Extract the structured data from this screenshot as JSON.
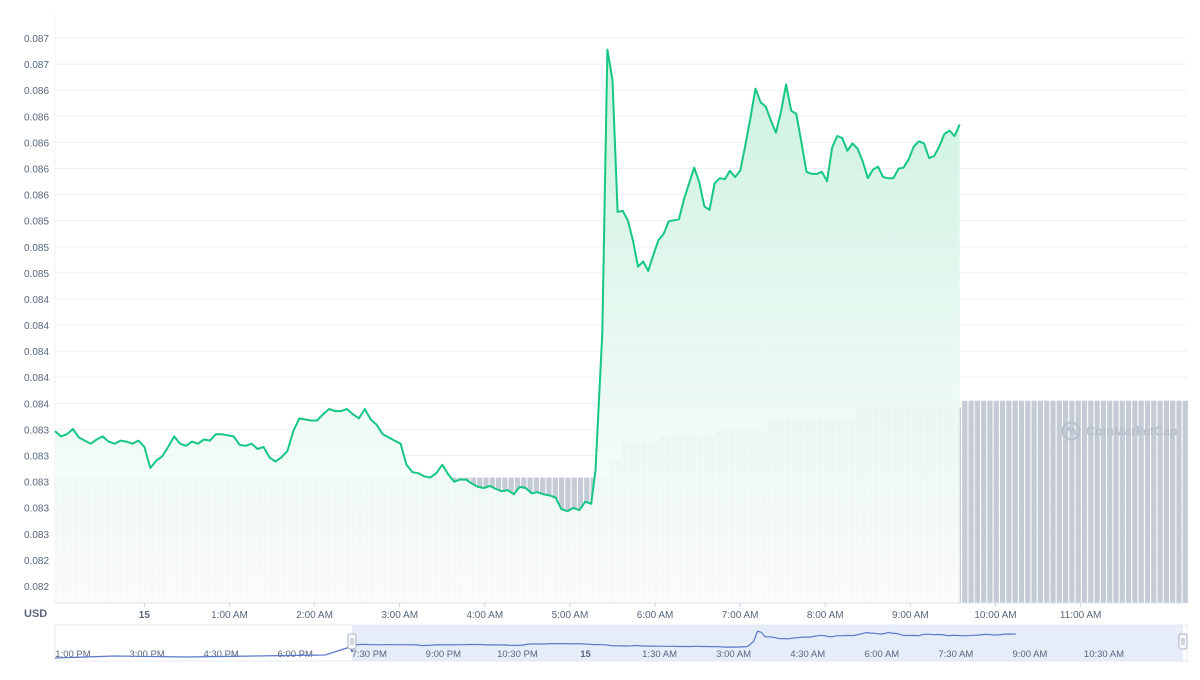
{
  "chart_data": {
    "type": "area",
    "currency_label": "USD",
    "watermark": "CoinMarketCap",
    "colors": {
      "line": "#16c784",
      "fill_top": "#c9f1de",
      "fill_bottom": "#ffffff",
      "volume": "#c5cbd6",
      "grid": "#eef0f3",
      "text": "#58667e",
      "nav_line": "#5b78c9",
      "nav_window": "#e3e9f8",
      "watermark": "#b8bfcb"
    },
    "y_ticks": [
      "0.087",
      "0.087",
      "0.086",
      "0.086",
      "0.086",
      "0.086",
      "0.086",
      "0.085",
      "0.085",
      "0.085",
      "0.084",
      "0.084",
      "0.084",
      "0.084",
      "0.084",
      "0.083",
      "0.083",
      "0.083",
      "0.083",
      "0.083",
      "0.082",
      "0.082"
    ],
    "y_range": [
      0.0819,
      0.0871
    ],
    "x_ticks": [
      "15",
      "1:00 AM",
      "2:00 AM",
      "3:00 AM",
      "4:00 AM",
      "5:00 AM",
      "6:00 AM",
      "7:00 AM",
      "8:00 AM",
      "9:00 AM",
      "10:00 AM",
      "11:00 AM"
    ],
    "x_range_hours": [
      -1.05,
      12.25
    ],
    "price_series": [
      [
        -1.05,
        0.08337
      ],
      [
        -0.98,
        0.08332
      ],
      [
        -0.91,
        0.08334
      ],
      [
        -0.84,
        0.08339
      ],
      [
        -0.77,
        0.08331
      ],
      [
        -0.7,
        0.08328
      ],
      [
        -0.63,
        0.08325
      ],
      [
        -0.56,
        0.08329
      ],
      [
        -0.49,
        0.08332
      ],
      [
        -0.42,
        0.08327
      ],
      [
        -0.35,
        0.08325
      ],
      [
        -0.28,
        0.08328
      ],
      [
        -0.21,
        0.08327
      ],
      [
        -0.14,
        0.08325
      ],
      [
        -0.07,
        0.08328
      ],
      [
        0.0,
        0.08322
      ],
      [
        0.07,
        0.08302
      ],
      [
        0.14,
        0.08309
      ],
      [
        0.21,
        0.08313
      ],
      [
        0.28,
        0.08322
      ],
      [
        0.35,
        0.08332
      ],
      [
        0.42,
        0.08325
      ],
      [
        0.49,
        0.08323
      ],
      [
        0.56,
        0.08327
      ],
      [
        0.63,
        0.08325
      ],
      [
        0.7,
        0.08329
      ],
      [
        0.77,
        0.08328
      ],
      [
        0.84,
        0.08334
      ],
      [
        0.91,
        0.08334
      ],
      [
        0.98,
        0.08333
      ],
      [
        1.05,
        0.08332
      ],
      [
        1.12,
        0.08324
      ],
      [
        1.19,
        0.08323
      ],
      [
        1.26,
        0.08325
      ],
      [
        1.33,
        0.0832
      ],
      [
        1.4,
        0.08322
      ],
      [
        1.47,
        0.08312
      ],
      [
        1.54,
        0.08308
      ],
      [
        1.61,
        0.08312
      ],
      [
        1.68,
        0.08318
      ],
      [
        1.75,
        0.08337
      ],
      [
        1.82,
        0.08349
      ],
      [
        1.89,
        0.08348
      ],
      [
        1.96,
        0.08347
      ],
      [
        2.03,
        0.08347
      ],
      [
        2.1,
        0.08353
      ],
      [
        2.17,
        0.08358
      ],
      [
        2.24,
        0.08356
      ],
      [
        2.31,
        0.08356
      ],
      [
        2.38,
        0.08358
      ],
      [
        2.45,
        0.08353
      ],
      [
        2.52,
        0.08349
      ],
      [
        2.59,
        0.08358
      ],
      [
        2.66,
        0.08348
      ],
      [
        2.73,
        0.08343
      ],
      [
        2.8,
        0.08334
      ],
      [
        2.87,
        0.08331
      ],
      [
        2.94,
        0.08328
      ],
      [
        3.01,
        0.08325
      ],
      [
        3.08,
        0.08305
      ],
      [
        3.15,
        0.08298
      ],
      [
        3.22,
        0.08297
      ],
      [
        3.29,
        0.08294
      ],
      [
        3.36,
        0.08293
      ],
      [
        3.43,
        0.08297
      ],
      [
        3.5,
        0.08305
      ],
      [
        3.57,
        0.08296
      ],
      [
        3.64,
        0.08289
      ],
      [
        3.71,
        0.08291
      ],
      [
        3.78,
        0.08291
      ],
      [
        3.85,
        0.08287
      ],
      [
        3.92,
        0.08284
      ],
      [
        3.99,
        0.08283
      ],
      [
        4.06,
        0.08285
      ],
      [
        4.13,
        0.08282
      ],
      [
        4.2,
        0.0828
      ],
      [
        4.27,
        0.08281
      ],
      [
        4.34,
        0.08277
      ],
      [
        4.41,
        0.08284
      ],
      [
        4.48,
        0.08283
      ],
      [
        4.55,
        0.08278
      ],
      [
        4.62,
        0.08279
      ],
      [
        4.69,
        0.08277
      ],
      [
        4.76,
        0.08276
      ],
      [
        4.83,
        0.08274
      ],
      [
        4.9,
        0.08263
      ],
      [
        4.97,
        0.08261
      ],
      [
        5.04,
        0.08264
      ],
      [
        5.11,
        0.08262
      ],
      [
        5.18,
        0.0827
      ],
      [
        5.25,
        0.08268
      ],
      [
        5.3,
        0.083
      ],
      [
        5.38,
        0.0843
      ],
      [
        5.44,
        0.08699
      ],
      [
        5.5,
        0.0867
      ],
      [
        5.56,
        0.08545
      ],
      [
        5.62,
        0.08546
      ],
      [
        5.68,
        0.08537
      ],
      [
        5.74,
        0.08518
      ],
      [
        5.8,
        0.08493
      ],
      [
        5.86,
        0.08498
      ],
      [
        5.92,
        0.08489
      ],
      [
        5.98,
        0.08504
      ],
      [
        6.04,
        0.08518
      ],
      [
        6.1,
        0.08524
      ],
      [
        6.16,
        0.08536
      ],
      [
        6.22,
        0.08537
      ],
      [
        6.28,
        0.08538
      ],
      [
        6.34,
        0.08557
      ],
      [
        6.4,
        0.08572
      ],
      [
        6.46,
        0.08587
      ],
      [
        6.52,
        0.08573
      ],
      [
        6.58,
        0.0855
      ],
      [
        6.64,
        0.08547
      ],
      [
        6.7,
        0.08572
      ],
      [
        6.76,
        0.08577
      ],
      [
        6.82,
        0.08576
      ],
      [
        6.88,
        0.08584
      ],
      [
        6.94,
        0.08578
      ],
      [
        7.0,
        0.08584
      ],
      [
        7.06,
        0.08608
      ],
      [
        7.12,
        0.08634
      ],
      [
        7.18,
        0.08662
      ],
      [
        7.24,
        0.08649
      ],
      [
        7.3,
        0.08645
      ],
      [
        7.36,
        0.08632
      ],
      [
        7.42,
        0.0862
      ],
      [
        7.48,
        0.0864
      ],
      [
        7.54,
        0.08666
      ],
      [
        7.6,
        0.08641
      ],
      [
        7.66,
        0.08638
      ],
      [
        7.72,
        0.08611
      ],
      [
        7.78,
        0.08583
      ],
      [
        7.84,
        0.08581
      ],
      [
        7.9,
        0.08581
      ],
      [
        7.96,
        0.08583
      ],
      [
        8.02,
        0.08574
      ],
      [
        8.08,
        0.08606
      ],
      [
        8.14,
        0.08617
      ],
      [
        8.2,
        0.08615
      ],
      [
        8.26,
        0.08603
      ],
      [
        8.32,
        0.0861
      ],
      [
        8.38,
        0.08605
      ],
      [
        8.44,
        0.08593
      ],
      [
        8.5,
        0.08577
      ],
      [
        8.56,
        0.08585
      ],
      [
        8.62,
        0.08588
      ],
      [
        8.68,
        0.08578
      ],
      [
        8.74,
        0.08577
      ],
      [
        8.8,
        0.08577
      ],
      [
        8.86,
        0.08586
      ],
      [
        8.92,
        0.08587
      ],
      [
        8.98,
        0.08595
      ],
      [
        9.04,
        0.08607
      ],
      [
        9.1,
        0.08612
      ],
      [
        9.16,
        0.0861
      ],
      [
        9.22,
        0.08596
      ],
      [
        9.28,
        0.08598
      ],
      [
        9.34,
        0.08607
      ],
      [
        9.4,
        0.08619
      ],
      [
        9.46,
        0.08622
      ],
      [
        9.52,
        0.08617
      ],
      [
        9.58,
        0.08628
      ]
    ],
    "volume_levels": [
      [
        -1.05,
        0.222
      ],
      [
        5.38,
        0.222
      ],
      [
        5.39,
        0.252
      ],
      [
        5.56,
        0.285
      ],
      [
        6.0,
        0.296
      ],
      [
        6.7,
        0.305
      ],
      [
        7.3,
        0.325
      ],
      [
        8.3,
        0.346
      ],
      [
        9.58,
        0.358
      ]
    ],
    "navigator": {
      "labels": [
        "1:00 PM",
        "3:00 PM",
        "4:30 PM",
        "6:00 PM",
        "7:30 PM",
        "9:00 PM",
        "10:30 PM",
        "15",
        "1:30 AM",
        "3:00 AM",
        "4:30 AM",
        "6:00 AM",
        "7:30 AM",
        "9:00 AM",
        "10:30 AM"
      ]
    }
  }
}
